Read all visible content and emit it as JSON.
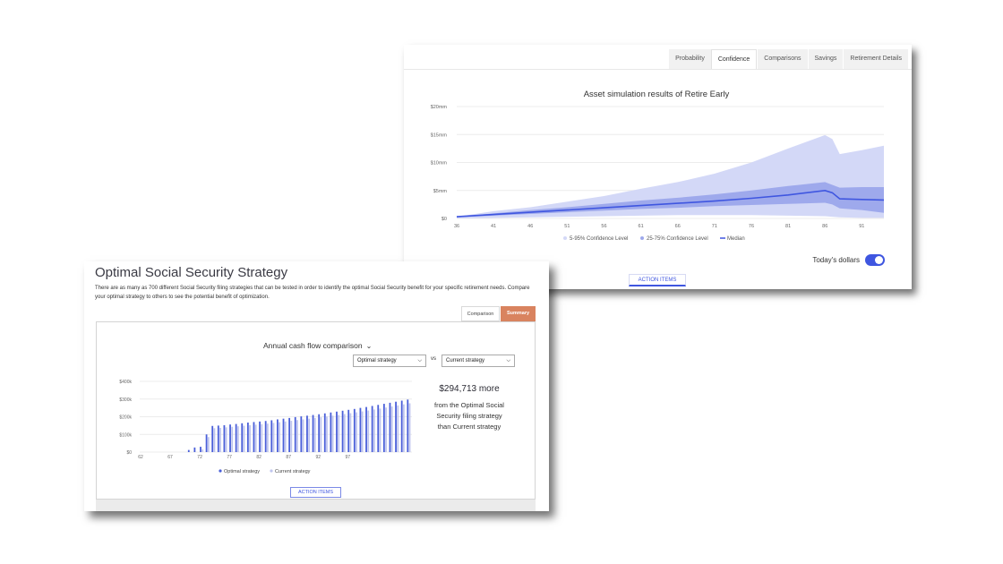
{
  "sim_card": {
    "tabs": [
      "Probability",
      "Confidence",
      "Comparisons",
      "Savings",
      "Retirement Details"
    ],
    "active_tab": "Confidence",
    "toggle_label": "Today's dollars",
    "toggle_on": true,
    "action_items_label": "ACTION ITEMS",
    "accent_color": "#3f56e0"
  },
  "ss_card": {
    "title": "Optimal Social Security Strategy",
    "description": "There are as many as 700 different Social Security filing strategies that can be tested in order to identify the optimal Social Security benefit for your specific retirement needs. Compare your optimal strategy to others to see the potential benefit of optimization.",
    "segments": {
      "comparison": "Comparison",
      "summary": "Summary"
    },
    "active_segment": "Summary",
    "cashflow_title": "Annual cash flow comparison",
    "select_a": "Optimal strategy",
    "vs_label": "vs",
    "select_b": "Current strategy",
    "more_amount": "$294,713 more",
    "more_text_1": "from the Optimal Social",
    "more_text_2": "Security filing strategy",
    "more_text_3": "than Current strategy",
    "action_items_label": "ACTION ITEMS",
    "summary_color": "#d9835f"
  },
  "chart_data": [
    {
      "type": "area",
      "title": "Asset simulation results of Retire Early",
      "y_ticks": [
        "$20mm",
        "$15mm",
        "$10mm",
        "$5mm",
        "$0"
      ],
      "ylim": [
        0,
        20
      ],
      "x_ticks": [
        "36",
        "41",
        "46",
        "51",
        "56",
        "61",
        "66",
        "71",
        "76",
        "81",
        "86",
        "91"
      ],
      "x": [
        36,
        41,
        46,
        51,
        56,
        61,
        66,
        71,
        76,
        81,
        86,
        87,
        88,
        91,
        94
      ],
      "series": [
        {
          "name": "5-95% Confidence Level",
          "color": "#d3d8f7",
          "low": [
            0,
            0.1,
            0.2,
            0.3,
            0.4,
            0.5,
            0.6,
            0.6,
            0.6,
            0.5,
            0.4,
            0.3,
            0.2,
            0.1,
            0.1
          ],
          "high": [
            0.3,
            1.3,
            2.0,
            3.0,
            4.0,
            5.3,
            6.5,
            8.0,
            10.0,
            12.5,
            14.9,
            14.2,
            11.5,
            12.2,
            13.0
          ]
        },
        {
          "name": "25-75% Confidence Level",
          "color": "#9ea9ec",
          "low": [
            0.2,
            0.5,
            0.8,
            1.1,
            1.4,
            1.7,
            1.9,
            2.2,
            2.4,
            2.6,
            2.8,
            2.5,
            1.8,
            1.5,
            1.0
          ],
          "high": [
            0.3,
            0.9,
            1.5,
            2.0,
            2.6,
            3.2,
            3.7,
            4.3,
            5.0,
            5.8,
            6.5,
            6.0,
            5.5,
            5.6,
            5.6
          ]
        },
        {
          "name": "Median",
          "color": "#3f56e0",
          "values": [
            0.3,
            0.7,
            1.1,
            1.5,
            1.9,
            2.3,
            2.7,
            3.1,
            3.6,
            4.2,
            5.0,
            4.6,
            3.5,
            3.4,
            3.3
          ]
        }
      ]
    },
    {
      "type": "bar",
      "y_ticks": [
        "$400k",
        "$300k",
        "$200k",
        "$100k",
        "$0"
      ],
      "ylim": [
        0,
        400
      ],
      "x_ticks": [
        "62",
        "67",
        "72",
        "77",
        "82",
        "87",
        "92",
        "97"
      ],
      "series": [
        {
          "name": "Optimal strategy",
          "color": "#4a5fd9",
          "values": [
            0,
            0,
            0,
            0,
            0,
            0,
            0,
            0,
            12,
            26,
            30,
            100,
            148,
            150,
            152,
            156,
            159,
            163,
            167,
            170,
            173,
            176,
            180,
            185,
            189,
            193,
            198,
            202,
            206,
            210,
            214,
            219,
            224,
            229,
            234,
            239,
            244,
            250,
            255,
            261,
            267,
            273,
            279,
            285,
            291,
            297
          ]
        },
        {
          "name": "Current strategy",
          "color": "#bfc5ee",
          "values": [
            0,
            0,
            0,
            0,
            0,
            0,
            0,
            0,
            0,
            0,
            15,
            85,
            135,
            137,
            140,
            143,
            146,
            149,
            152,
            155,
            158,
            161,
            165,
            169,
            173,
            177,
            181,
            185,
            189,
            193,
            197,
            201,
            206,
            210,
            215,
            220,
            225,
            230,
            235,
            241,
            246,
            252,
            258,
            264,
            270,
            276
          ]
        }
      ]
    }
  ]
}
